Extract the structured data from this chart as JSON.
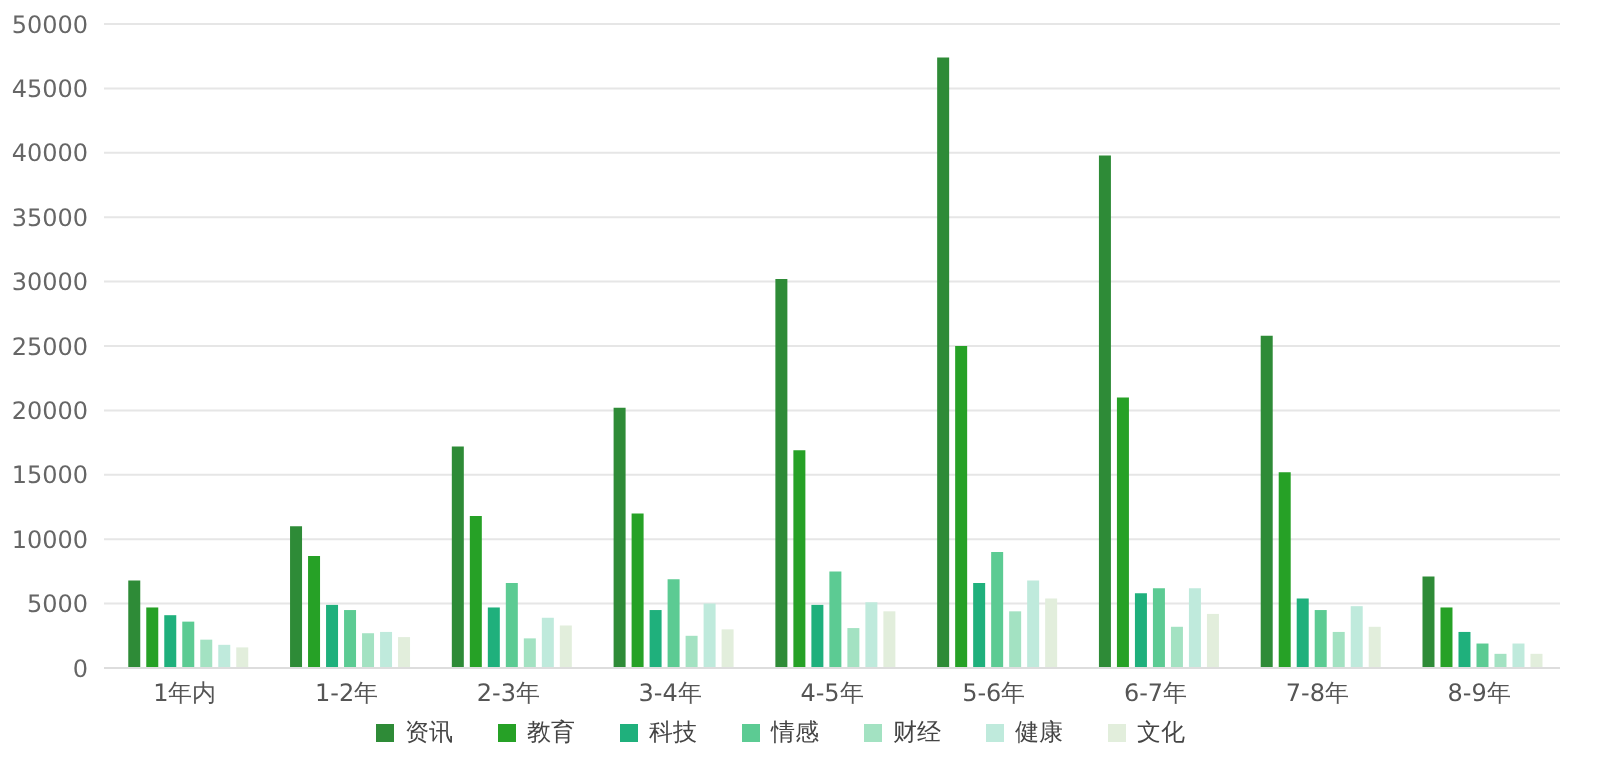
{
  "chart_data": {
    "type": "bar",
    "categories": [
      "1年内",
      "1-2年",
      "2-3年",
      "3-4年",
      "4-5年",
      "5-6年",
      "6-7年",
      "7-8年",
      "8-9年"
    ],
    "series": [
      {
        "name": "资讯",
        "color": "#2e8b37",
        "values": [
          6800,
          11000,
          17200,
          20200,
          30200,
          47400,
          39800,
          25800,
          7100
        ]
      },
      {
        "name": "教育",
        "color": "#26a126",
        "values": [
          4700,
          8700,
          11800,
          12000,
          16900,
          25000,
          21000,
          15200,
          4700
        ]
      },
      {
        "name": "科技",
        "color": "#1fb07c",
        "values": [
          4100,
          4900,
          4700,
          4500,
          4900,
          6600,
          5800,
          5400,
          2800
        ]
      },
      {
        "name": "情感",
        "color": "#5ccb93",
        "values": [
          3600,
          4500,
          6600,
          6900,
          7500,
          9000,
          6200,
          4500,
          1900
        ]
      },
      {
        "name": "财经",
        "color": "#a3e2c2",
        "values": [
          2200,
          2700,
          2300,
          2500,
          3100,
          4400,
          3200,
          2800,
          1100
        ]
      },
      {
        "name": "健康",
        "color": "#bfeadc",
        "values": [
          1800,
          2800,
          3900,
          5000,
          5100,
          6800,
          6200,
          4800,
          1900
        ]
      },
      {
        "name": "文化",
        "color": "#e2eedc",
        "values": [
          1600,
          2400,
          3300,
          3000,
          4400,
          5400,
          4200,
          3200,
          1100
        ]
      }
    ],
    "ylim": [
      0,
      50000
    ],
    "yticks": [
      0,
      5000,
      10000,
      15000,
      20000,
      25000,
      30000,
      35000,
      40000,
      45000,
      50000
    ],
    "grid": "y",
    "legend": "bottom"
  }
}
